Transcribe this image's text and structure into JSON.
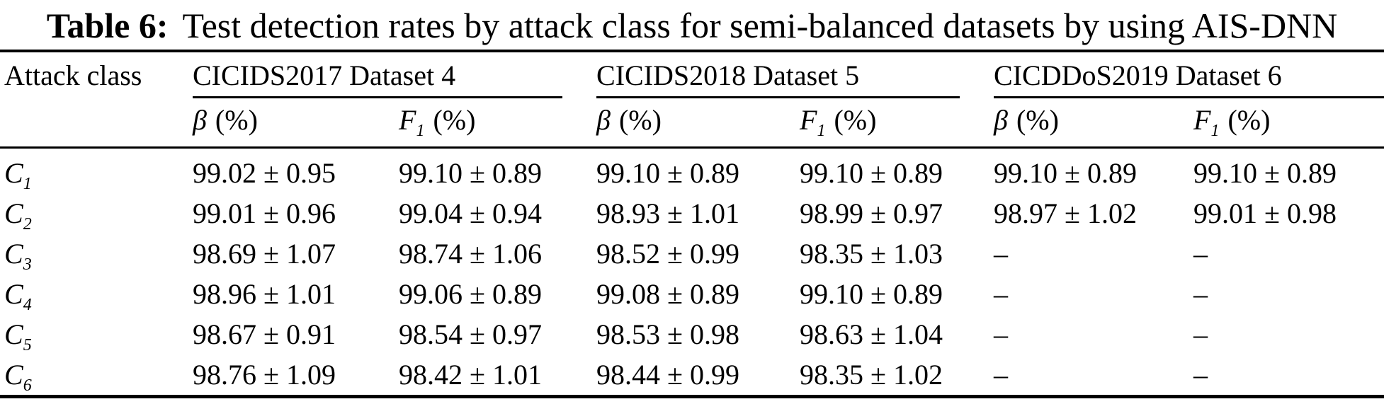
{
  "title": {
    "label": "Table 6:",
    "text": "Test detection rates by attack class for semi-balanced datasets by using AIS-DNN"
  },
  "colors": {
    "background": "#ffffff",
    "text": "#000000",
    "rule": "#000000"
  },
  "table": {
    "row_header": "Attack class",
    "groups": [
      {
        "label": "CICIDS2017 Dataset 4"
      },
      {
        "label": "CICIDS2018 Dataset 5"
      },
      {
        "label": "CICDDoS2019 Dataset 6"
      }
    ],
    "subheaders": [
      {
        "symbol": "β",
        "sub": "",
        "unit": "(%)"
      },
      {
        "symbol": "F",
        "sub": "1",
        "unit": "(%)"
      },
      {
        "symbol": "β",
        "sub": "",
        "unit": "(%)"
      },
      {
        "symbol": "F",
        "sub": "1",
        "unit": "(%)"
      },
      {
        "symbol": "β",
        "sub": "",
        "unit": "(%)"
      },
      {
        "symbol": "F",
        "sub": "1",
        "unit": "(%)"
      }
    ],
    "rows": [
      {
        "label_base": "C",
        "label_sub": "1",
        "values": [
          "99.02 ± 0.95",
          "99.10 ± 0.89",
          "99.10 ± 0.89",
          "99.10 ± 0.89",
          "99.10 ± 0.89",
          "99.10 ± 0.89"
        ]
      },
      {
        "label_base": "C",
        "label_sub": "2",
        "values": [
          "99.01 ± 0.96",
          "99.04 ± 0.94",
          "98.93 ± 1.01",
          "98.99 ± 0.97",
          "98.97 ± 1.02",
          "99.01 ± 0.98"
        ]
      },
      {
        "label_base": "C",
        "label_sub": "3",
        "values": [
          "98.69 ± 1.07",
          "98.74 ± 1.06",
          "98.52 ± 0.99",
          "98.35 ± 1.03",
          "–",
          "–"
        ]
      },
      {
        "label_base": "C",
        "label_sub": "4",
        "values": [
          "98.96 ± 1.01",
          "99.06 ± 0.89",
          "99.08 ± 0.89",
          "99.10 ± 0.89",
          "–",
          "–"
        ]
      },
      {
        "label_base": "C",
        "label_sub": "5",
        "values": [
          "98.67 ± 0.91",
          "98.54 ± 0.97",
          "98.53 ± 0.98",
          "98.63 ± 1.04",
          "–",
          "–"
        ]
      },
      {
        "label_base": "C",
        "label_sub": "6",
        "values": [
          "98.76 ± 1.09",
          "98.42 ± 1.01",
          "98.44 ± 0.99",
          "98.35 ± 1.02",
          "–",
          "–"
        ]
      }
    ]
  }
}
